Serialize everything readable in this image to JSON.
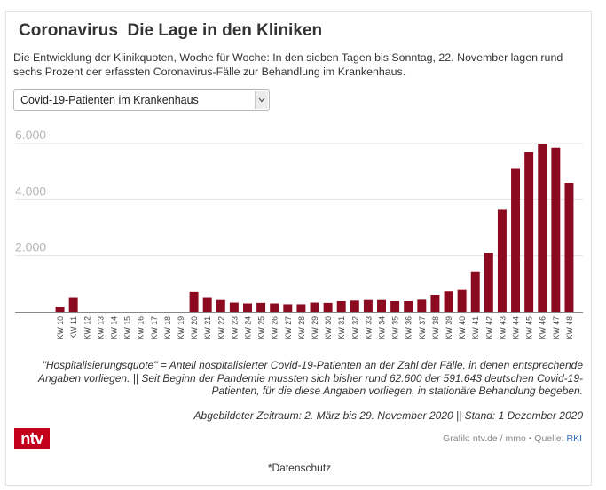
{
  "header": {
    "title": "Coronavirus  Die Lage in den Kliniken",
    "subtitle": "Die Entwicklung der Klinikquoten, Woche für Woche: In den sieben Tagen bis Sonntag, 22. November lagen rund sechs Prozent der erfassten Coronavirus-Fälle zur Behandlung im Krankenhaus."
  },
  "dropdown": {
    "selected": "Covid-19-Patienten im Krankenhaus"
  },
  "chart_data": {
    "type": "bar",
    "categories": [
      "KW 10",
      "KW 11",
      "KW 12",
      "KW 13",
      "KW 14",
      "KW 15",
      "KW 16",
      "KW 17",
      "KW 18",
      "KW 19",
      "KW 20",
      "KW 21",
      "KW 22",
      "KW 23",
      "KW 24",
      "KW 25",
      "KW 26",
      "KW 27",
      "KW 28",
      "KW 29",
      "KW 30",
      "KW 31",
      "KW 32",
      "KW 33",
      "KW 34",
      "KW 35",
      "KW 36",
      "KW 37",
      "KW 38",
      "KW 39",
      "KW 40",
      "KW 41",
      "KW 42",
      "KW 43",
      "KW 44",
      "KW 45",
      "KW 46",
      "KW 47",
      "KW 48"
    ],
    "values": [
      180,
      520,
      0,
      0,
      0,
      0,
      0,
      0,
      0,
      0,
      730,
      520,
      420,
      330,
      300,
      320,
      300,
      270,
      270,
      330,
      320,
      380,
      400,
      420,
      420,
      380,
      380,
      430,
      600,
      750,
      800,
      1430,
      2100,
      3650,
      5100,
      5700,
      6000,
      5850,
      4600
    ],
    "y_ticks": [
      "6.000",
      "4.000",
      "2.000"
    ],
    "y_tick_values": [
      6000,
      4000,
      2000
    ],
    "ylim": [
      0,
      6000
    ],
    "grid": true,
    "bar_color": "#8c0a1f"
  },
  "notes": {
    "definition": "\"Hospitalisierungsquote\" = Anteil hospitalisierter Covid-19-Patienten an der Zahl der Fälle, in denen entsprechende Angaben vorliegen. || Seit Beginn der Pandemie mussten sich bisher rund 62.600 der 591.643 deutschen Covid-19-Patienten, für die diese Angaben vorliegen, in stationäre Behandlung begeben.",
    "period": "Abgebildeter Zeitraum: 2. März bis 29. November 2020 || Stand: 1 Dezember 2020"
  },
  "footer": {
    "logo": "ntv",
    "credit": "Grafik: ntv.de / mmo • Quelle: ",
    "source_link": "RKI",
    "privacy": "*Datenschutz"
  },
  "colors": {
    "brand": "#c4001a",
    "bar": "#8c0a1f",
    "link": "#2a6ebb"
  }
}
